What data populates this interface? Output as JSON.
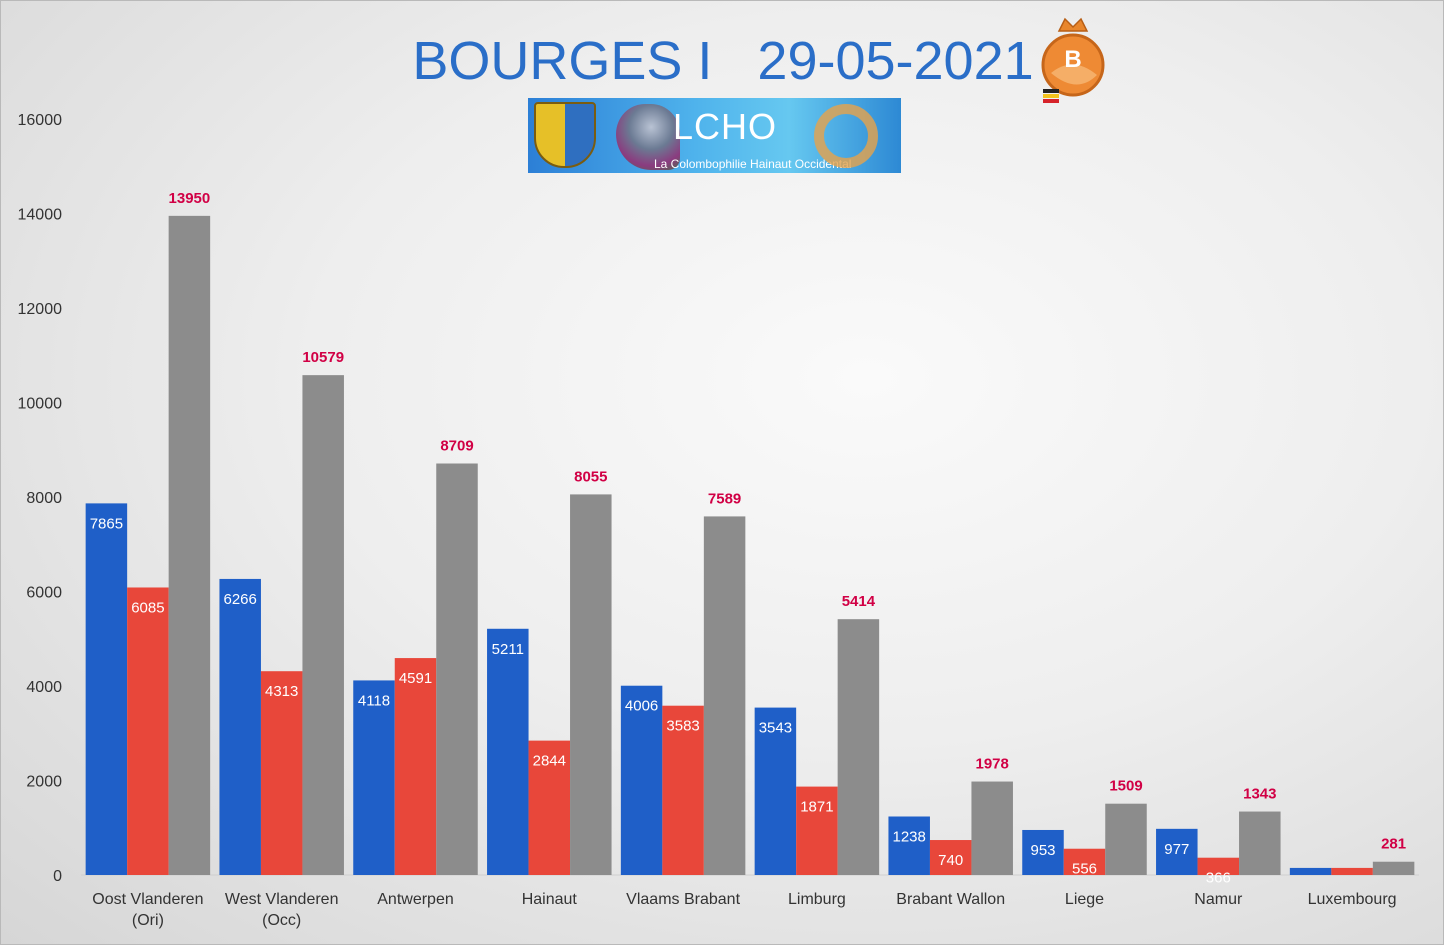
{
  "chart_data": {
    "type": "bar",
    "title": "BOURGES I   29-05-2021",
    "categories": [
      [
        "Oost Vlanderen",
        "(Ori)"
      ],
      [
        "West Vlanderen",
        "(Occ)"
      ],
      [
        "Antwerpen"
      ],
      [
        "Hainaut"
      ],
      [
        "Vlaams Brabant"
      ],
      [
        "Limburg"
      ],
      [
        "Brabant Wallon"
      ],
      [
        "Liege"
      ],
      [
        "Namur"
      ],
      [
        "Luxembourg"
      ]
    ],
    "series": [
      {
        "color": "#1f5fc8",
        "values": [
          7865,
          6266,
          4118,
          5211,
          4006,
          3543,
          1238,
          953,
          977,
          150
        ],
        "labels": [
          "7865",
          "6266",
          "4118",
          "5211",
          "4006",
          "3543",
          "1238",
          "953",
          "977",
          ""
        ]
      },
      {
        "color": "#e8473a",
        "values": [
          6085,
          4313,
          4591,
          2844,
          3583,
          1871,
          740,
          556,
          366,
          150
        ],
        "labels": [
          "6085",
          "4313",
          "4591",
          "2844",
          "3583",
          "1871",
          "740",
          "556",
          "366",
          ""
        ]
      },
      {
        "color": "#8c8c8c",
        "values": [
          13950,
          10579,
          8709,
          8055,
          7589,
          5414,
          1978,
          1509,
          1343,
          281
        ],
        "labels": [
          "13950",
          "10579",
          "8709",
          "8055",
          "7589",
          "5414",
          "1978",
          "1509",
          "1343",
          "281"
        ]
      }
    ],
    "yticks": [
      0,
      2000,
      4000,
      6000,
      8000,
      10000,
      12000,
      14000,
      16000
    ],
    "ylim": [
      0,
      16000
    ],
    "grid": false,
    "legend": "none"
  },
  "banner": {
    "name": "LCHO",
    "subtitle": "La Colombophilie Hainaut Occidental"
  },
  "logo": {
    "letter": "B"
  }
}
